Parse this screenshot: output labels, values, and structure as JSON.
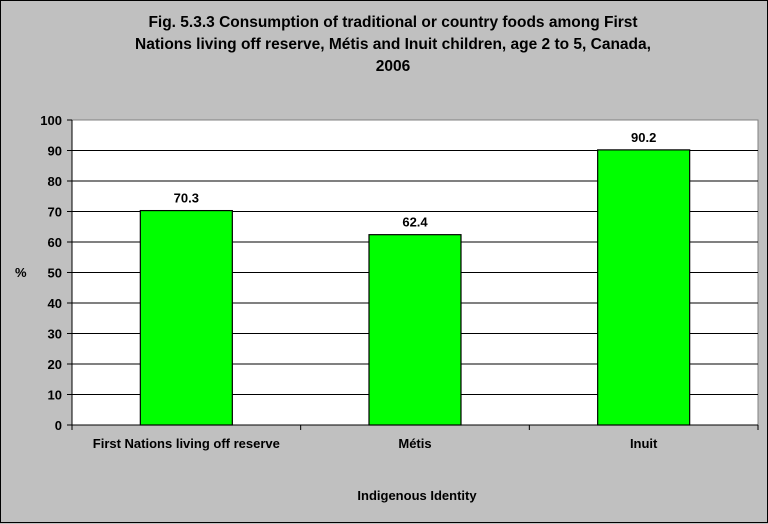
{
  "chart_data": {
    "type": "bar",
    "title_lines": [
      "Fig. 5.3.3 Consumption of traditional or country foods among First",
      "Nations living off reserve, Métis and Inuit children, age 2 to 5, Canada,",
      "2006"
    ],
    "categories": [
      "First Nations living off reserve",
      "Métis",
      "Inuit"
    ],
    "values": [
      70.3,
      62.4,
      90.2
    ],
    "data_labels": [
      "70.3",
      "62.4",
      "90.2"
    ],
    "xlabel": "Indigenous Identity",
    "ylabel": "%",
    "ylim": [
      0,
      100
    ],
    "yticks": [
      0,
      10,
      20,
      30,
      40,
      50,
      60,
      70,
      80,
      90,
      100
    ],
    "grid": true,
    "legend": "none",
    "bar_color": "#00ff00",
    "plot_background": "#ffffff",
    "chart_background": "#c0c0c0"
  }
}
